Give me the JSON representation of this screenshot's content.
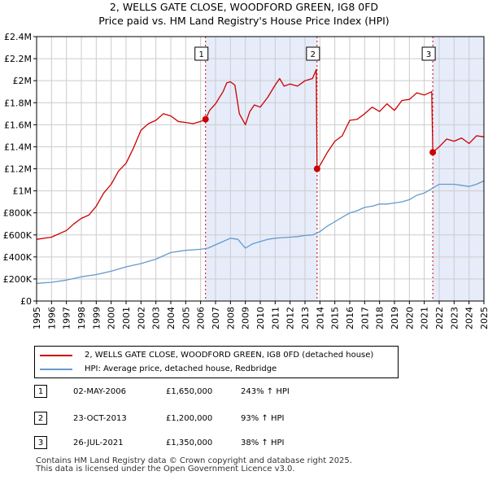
{
  "title_line1": "2, WELLS GATE CLOSE, WOODFORD GREEN, IG8 0FD",
  "title_line2": "Price paid vs. HM Land Registry's House Price Index (HPI)",
  "colors": {
    "property": "#cc0000",
    "hpi": "#6699cc",
    "shade": "#e6ecfa",
    "vline": "#cc0000",
    "grid": "#cccccc"
  },
  "legend": [
    {
      "label": "2, WELLS GATE CLOSE, WOODFORD GREEN, IG8 0FD (detached house)",
      "color": "#cc0000"
    },
    {
      "label": "HPI: Average price, detached house, Redbridge",
      "color": "#6699cc"
    }
  ],
  "transactions": [
    {
      "num": "1",
      "date": "02-MAY-2006",
      "price": "£1,650,000",
      "hpi": "243% ↑ HPI"
    },
    {
      "num": "2",
      "date": "23-OCT-2013",
      "price": "£1,200,000",
      "hpi": "93% ↑ HPI"
    },
    {
      "num": "3",
      "date": "26-JUL-2021",
      "price": "£1,350,000",
      "hpi": "38% ↑ HPI"
    }
  ],
  "footer_line1": "Contains HM Land Registry data © Crown copyright and database right 2025.",
  "footer_line2": "This data is licensed under the Open Government Licence v3.0.",
  "chart_data": {
    "type": "line",
    "title": "2, WELLS GATE CLOSE, WOODFORD GREEN, IG8 0FD",
    "subtitle": "Price paid vs. HM Land Registry's House Price Index (HPI)",
    "xlim": [
      1995,
      2025
    ],
    "ylim": [
      0,
      2400000
    ],
    "x_ticks": [
      1995,
      1996,
      1997,
      1998,
      1999,
      2000,
      2001,
      2002,
      2003,
      2004,
      2005,
      2006,
      2007,
      2008,
      2009,
      2010,
      2011,
      2012,
      2013,
      2014,
      2015,
      2016,
      2017,
      2018,
      2019,
      2020,
      2021,
      2022,
      2023,
      2024,
      2025
    ],
    "x_tick_labels": [
      "1995",
      "1996",
      "1997",
      "1998",
      "1999",
      "2000",
      "2001",
      "2002",
      "2003",
      "2004",
      "2005",
      "2006",
      "2007",
      "2008",
      "2009",
      "2010",
      "2011",
      "2012",
      "2013",
      "2014",
      "2015",
      "2016",
      "2017",
      "2018",
      "2019",
      "2020",
      "2021",
      "2022",
      "2023",
      "2024",
      "2025"
    ],
    "y_ticks": [
      0,
      200000,
      400000,
      600000,
      800000,
      1000000,
      1200000,
      1400000,
      1600000,
      1800000,
      2000000,
      2200000,
      2400000
    ],
    "y_tick_labels": [
      "£0",
      "£200K",
      "£400K",
      "£600K",
      "£800K",
      "£1M",
      "£1.2M",
      "£1.4M",
      "£1.6M",
      "£1.8M",
      "£2M",
      "£2.2M",
      "£2.4M"
    ],
    "grid": true,
    "shaded_regions": [
      [
        2006.33,
        2013.81
      ],
      [
        2021.57,
        2025
      ]
    ],
    "sales": [
      {
        "label": "1",
        "x": 2006.33,
        "y": 1650000
      },
      {
        "label": "2",
        "x": 2013.81,
        "y": 1200000
      },
      {
        "label": "3",
        "x": 2021.57,
        "y": 1350000
      }
    ],
    "series": [
      {
        "name": "2, WELLS GATE CLOSE, WOODFORD GREEN, IG8 0FD (detached house)",
        "x": [
          1995.0,
          1996.0,
          1997.0,
          1997.5,
          1998.0,
          1998.5,
          1999.0,
          1999.5,
          2000.0,
          2000.5,
          2001.0,
          2001.5,
          2002.0,
          2002.5,
          2003.0,
          2003.5,
          2004.0,
          2004.5,
          2005.0,
          2005.5,
          2006.0,
          2006.33,
          2006.6,
          2007.0,
          2007.5,
          2007.75,
          2008.0,
          2008.3,
          2008.6,
          2009.0,
          2009.3,
          2009.6,
          2010.0,
          2010.5,
          2011.0,
          2011.3,
          2011.6,
          2012.0,
          2012.5,
          2013.0,
          2013.5,
          2013.75,
          2013.81,
          2014.0,
          2014.5,
          2015.0,
          2015.5,
          2016.0,
          2016.5,
          2017.0,
          2017.5,
          2018.0,
          2018.5,
          2019.0,
          2019.5,
          2020.0,
          2020.5,
          2021.0,
          2021.5,
          2021.57,
          2022.0,
          2022.5,
          2023.0,
          2023.5,
          2024.0,
          2024.5,
          2025.0
        ],
        "y": [
          560000,
          580000,
          640000,
          700000,
          750000,
          780000,
          860000,
          980000,
          1060000,
          1180000,
          1250000,
          1390000,
          1550000,
          1610000,
          1640000,
          1700000,
          1680000,
          1630000,
          1620000,
          1610000,
          1630000,
          1650000,
          1730000,
          1790000,
          1900000,
          1980000,
          1990000,
          1960000,
          1700000,
          1600000,
          1720000,
          1780000,
          1760000,
          1850000,
          1960000,
          2020000,
          1950000,
          1970000,
          1950000,
          2000000,
          2020000,
          2100000,
          1200000,
          1230000,
          1350000,
          1450000,
          1500000,
          1640000,
          1650000,
          1700000,
          1760000,
          1720000,
          1790000,
          1730000,
          1820000,
          1830000,
          1890000,
          1870000,
          1900000,
          1350000,
          1400000,
          1470000,
          1450000,
          1480000,
          1430000,
          1500000,
          1490000
        ]
      },
      {
        "name": "HPI: Average price, detached house, Redbridge",
        "x": [
          1995.0,
          1996.0,
          1997.0,
          1998.0,
          1999.0,
          2000.0,
          2001.0,
          2002.0,
          2003.0,
          2004.0,
          2005.0,
          2006.0,
          2006.5,
          2007.0,
          2007.5,
          2008.0,
          2008.5,
          2009.0,
          2009.5,
          2010.0,
          2010.5,
          2011.0,
          2011.5,
          2012.0,
          2012.5,
          2013.0,
          2013.5,
          2014.0,
          2014.5,
          2015.0,
          2015.5,
          2016.0,
          2016.5,
          2017.0,
          2017.5,
          2018.0,
          2018.5,
          2019.0,
          2019.5,
          2020.0,
          2020.5,
          2021.0,
          2021.5,
          2022.0,
          2022.5,
          2023.0,
          2023.5,
          2024.0,
          2024.5,
          2025.0
        ],
        "y": [
          160000,
          170000,
          190000,
          220000,
          240000,
          270000,
          310000,
          340000,
          380000,
          440000,
          460000,
          470000,
          480000,
          510000,
          540000,
          570000,
          560000,
          480000,
          520000,
          540000,
          560000,
          570000,
          575000,
          580000,
          585000,
          595000,
          600000,
          630000,
          680000,
          720000,
          760000,
          800000,
          820000,
          850000,
          860000,
          880000,
          880000,
          890000,
          900000,
          920000,
          960000,
          980000,
          1020000,
          1060000,
          1060000,
          1060000,
          1050000,
          1040000,
          1060000,
          1090000
        ]
      }
    ]
  }
}
